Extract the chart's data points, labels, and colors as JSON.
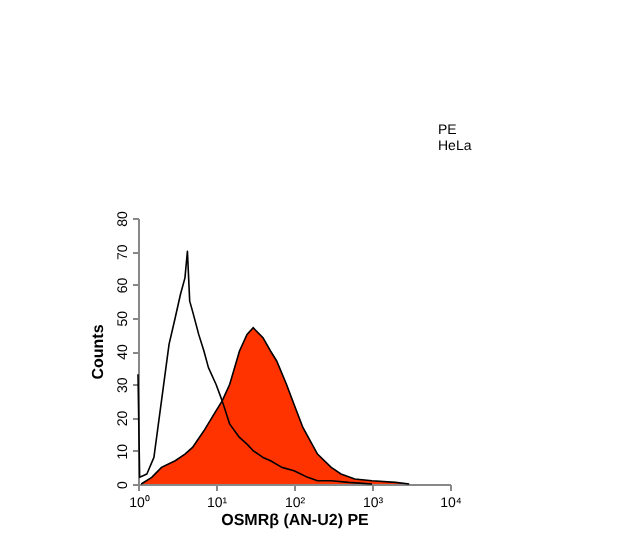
{
  "chart_data": {
    "type": "area",
    "xlabel": "OSMRβ (AN-U2) PE",
    "ylabel": "Counts",
    "annotations": [
      "PE",
      "HeLa"
    ],
    "log": "x",
    "grid": false,
    "xlim": [
      1,
      10000
    ],
    "xticks": [
      {
        "value": 1,
        "label": "10⁰"
      },
      {
        "value": 10,
        "label": "10¹"
      },
      {
        "value": 100,
        "label": "10²"
      },
      {
        "value": 1000,
        "label": "10³"
      },
      {
        "value": 10000,
        "label": "10⁴"
      }
    ],
    "ylim": [
      0,
      80
    ],
    "yticks": [
      0,
      10,
      20,
      30,
      40,
      50,
      60,
      70,
      80
    ],
    "series": [
      {
        "type": "area",
        "color": "#ff3300",
        "x": [
          1.1,
          1.5,
          2,
          3,
          4,
          5,
          7,
          10,
          12,
          15,
          20,
          25,
          30,
          40,
          50,
          60,
          80,
          100,
          130,
          200,
          300,
          400,
          600,
          1000,
          2000,
          3000
        ],
        "values": [
          0,
          2,
          5,
          7,
          9,
          11,
          16,
          22,
          25,
          30,
          40,
          45,
          47,
          44,
          40,
          37,
          30,
          24,
          17,
          9,
          5,
          3,
          1.5,
          1,
          0.5,
          0
        ]
      },
      {
        "type": "line",
        "color": "#000000",
        "x": [
          1,
          1.05,
          1.3,
          1.6,
          2,
          2.5,
          3,
          3.5,
          4,
          4.3,
          4.6,
          5,
          6,
          7,
          8,
          10,
          12,
          15,
          20,
          25,
          30,
          40,
          50,
          70,
          100,
          150,
          200,
          300,
          500,
          1000
        ],
        "values": [
          33,
          2,
          3,
          8,
          25,
          42,
          50,
          57,
          62,
          70,
          55,
          52,
          45,
          40,
          35,
          30,
          25,
          18,
          14,
          12,
          10,
          8,
          7,
          5,
          4,
          2,
          1,
          1,
          0.5,
          0
        ]
      }
    ]
  }
}
